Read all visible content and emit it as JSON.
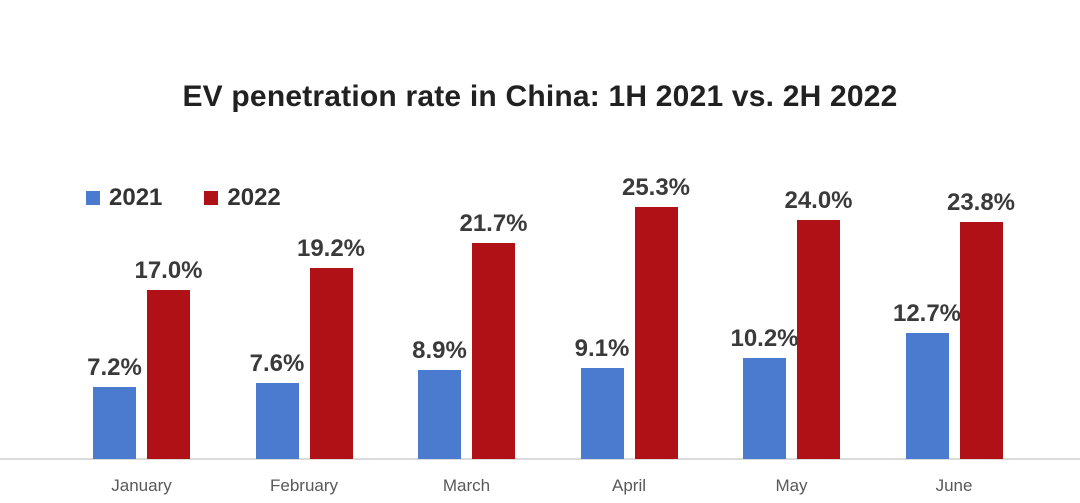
{
  "chart_data": {
    "type": "bar",
    "title": "EV penetration rate in China: 1H 2021 vs. 2H 2022",
    "categories": [
      "January",
      "February",
      "March",
      "April",
      "May",
      "June"
    ],
    "series": [
      {
        "name": "2021",
        "color": "#4a7bce",
        "values": [
          7.2,
          7.6,
          8.9,
          9.1,
          10.2,
          12.7
        ],
        "labels": [
          "7.2%",
          "7.6%",
          "8.9%",
          "9.1%",
          "10.2%",
          "12.7%"
        ]
      },
      {
        "name": "2022",
        "color": "#b01116",
        "values": [
          17.0,
          19.2,
          21.7,
          25.3,
          24.0,
          23.8
        ],
        "labels": [
          "17.0%",
          "19.2%",
          "21.7%",
          "25.3%",
          "24.0%",
          "23.8%"
        ]
      }
    ],
    "xlabel": "",
    "ylabel": "",
    "ylim": [
      0,
      27
    ],
    "grid": false,
    "legend_position": "top-left",
    "background_color": "#ffffff",
    "axis_line_color": "#dbdbdb",
    "value_label_color": "#3a3a3a",
    "month_label_color": "#595959",
    "title_color": "#212121"
  }
}
